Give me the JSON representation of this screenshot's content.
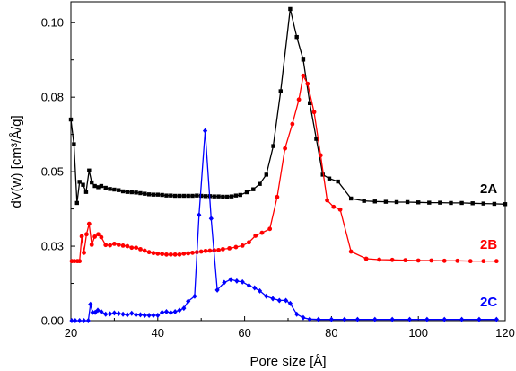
{
  "chart_data": {
    "type": "line",
    "xlabel": "Pore size [Å]",
    "ylabel": "dV(w) [cm³/Å/g]",
    "xlim": [
      20,
      120
    ],
    "ylim": [
      0,
      0.107
    ],
    "x_ticks": [
      20,
      40,
      60,
      80,
      100,
      120
    ],
    "x_tick_labels": [
      "20",
      "40",
      "60",
      "80",
      "100",
      "120"
    ],
    "y_ticks": [
      0,
      0.025,
      0.05,
      0.075,
      0.1
    ],
    "y_tick_labels": [
      "0.00",
      "0.03",
      "0.05",
      "0.08",
      "0.10"
    ],
    "grid": false,
    "legend": "inline labels at right",
    "series": [
      {
        "name": "2A",
        "color": "#000000",
        "marker": "square",
        "points": [
          [
            20.0,
            0.0675
          ],
          [
            20.7,
            0.0592
          ],
          [
            21.4,
            0.0395
          ],
          [
            22.0,
            0.0466
          ],
          [
            22.8,
            0.0456
          ],
          [
            23.5,
            0.0432
          ],
          [
            24.2,
            0.0504
          ],
          [
            24.8,
            0.0464
          ],
          [
            25.5,
            0.0452
          ],
          [
            26.3,
            0.0448
          ],
          [
            27.0,
            0.0452
          ],
          [
            28.0,
            0.0446
          ],
          [
            29.0,
            0.0442
          ],
          [
            30.0,
            0.044
          ],
          [
            31.0,
            0.0438
          ],
          [
            32.0,
            0.0434
          ],
          [
            33.0,
            0.0432
          ],
          [
            34.0,
            0.0431
          ],
          [
            35.0,
            0.043
          ],
          [
            36.0,
            0.0428
          ],
          [
            37.0,
            0.0426
          ],
          [
            38.0,
            0.0424
          ],
          [
            39.0,
            0.0423
          ],
          [
            40.0,
            0.0423
          ],
          [
            41.0,
            0.0422
          ],
          [
            42.0,
            0.042
          ],
          [
            43.0,
            0.042
          ],
          [
            44.0,
            0.0419
          ],
          [
            45.0,
            0.0419
          ],
          [
            46.0,
            0.0419
          ],
          [
            47.0,
            0.0419
          ],
          [
            48.0,
            0.0419
          ],
          [
            49.0,
            0.042
          ],
          [
            50.0,
            0.0419
          ],
          [
            51.0,
            0.0418
          ],
          [
            52.0,
            0.0418
          ],
          [
            53.0,
            0.0417
          ],
          [
            54.0,
            0.0417
          ],
          [
            55.0,
            0.0416
          ],
          [
            56.0,
            0.0416
          ],
          [
            57.0,
            0.0417
          ],
          [
            58.0,
            0.042
          ],
          [
            59.0,
            0.0422
          ],
          [
            60.5,
            0.0431
          ],
          [
            62.0,
            0.0441
          ],
          [
            63.5,
            0.0459
          ],
          [
            65.0,
            0.049
          ],
          [
            66.6,
            0.0586
          ],
          [
            68.3,
            0.077
          ],
          [
            70.5,
            0.1046
          ],
          [
            72.0,
            0.0952
          ],
          [
            73.5,
            0.0876
          ],
          [
            75.0,
            0.073
          ],
          [
            76.5,
            0.061
          ],
          [
            78.0,
            0.049
          ],
          [
            79.5,
            0.0477
          ],
          [
            81.5,
            0.0467
          ],
          [
            84.5,
            0.041
          ],
          [
            87.5,
            0.0402
          ],
          [
            90.0,
            0.04
          ],
          [
            92.5,
            0.0399
          ],
          [
            95.0,
            0.0398
          ],
          [
            97.5,
            0.0398
          ],
          [
            100.0,
            0.0397
          ],
          [
            102.5,
            0.0396
          ],
          [
            105.0,
            0.0396
          ],
          [
            107.5,
            0.0395
          ],
          [
            110.0,
            0.0395
          ],
          [
            112.5,
            0.0394
          ],
          [
            115.0,
            0.0393
          ],
          [
            117.5,
            0.0392
          ],
          [
            120.0,
            0.0391
          ]
        ]
      },
      {
        "name": "2B",
        "color": "#ff0000",
        "marker": "circle",
        "points": [
          [
            20.2,
            0.02
          ],
          [
            20.8,
            0.02
          ],
          [
            21.5,
            0.02
          ],
          [
            22.0,
            0.02
          ],
          [
            22.5,
            0.0283
          ],
          [
            23.0,
            0.0228
          ],
          [
            23.6,
            0.029
          ],
          [
            24.2,
            0.0325
          ],
          [
            24.8,
            0.0255
          ],
          [
            25.5,
            0.0282
          ],
          [
            26.3,
            0.029
          ],
          [
            27.0,
            0.028
          ],
          [
            28.0,
            0.0254
          ],
          [
            29.0,
            0.0253
          ],
          [
            30.0,
            0.0258
          ],
          [
            31.0,
            0.0255
          ],
          [
            32.0,
            0.0252
          ],
          [
            33.0,
            0.025
          ],
          [
            34.0,
            0.0245
          ],
          [
            35.0,
            0.0245
          ],
          [
            36.0,
            0.024
          ],
          [
            37.0,
            0.0235
          ],
          [
            38.0,
            0.023
          ],
          [
            39.0,
            0.0227
          ],
          [
            40.0,
            0.0225
          ],
          [
            41.0,
            0.0224
          ],
          [
            42.0,
            0.0222
          ],
          [
            43.0,
            0.0222
          ],
          [
            44.0,
            0.0222
          ],
          [
            45.0,
            0.0222
          ],
          [
            46.0,
            0.0225
          ],
          [
            47.0,
            0.0226
          ],
          [
            48.0,
            0.0228
          ],
          [
            49.0,
            0.023
          ],
          [
            50.0,
            0.0232
          ],
          [
            51.0,
            0.0234
          ],
          [
            52.0,
            0.0235
          ],
          [
            53.0,
            0.0236
          ],
          [
            54.0,
            0.0237
          ],
          [
            55.0,
            0.024
          ],
          [
            56.5,
            0.0243
          ],
          [
            58.0,
            0.0247
          ],
          [
            59.5,
            0.0252
          ],
          [
            61.0,
            0.0263
          ],
          [
            62.5,
            0.0285
          ],
          [
            64.0,
            0.0295
          ],
          [
            65.8,
            0.0308
          ],
          [
            67.5,
            0.0415
          ],
          [
            69.3,
            0.0578
          ],
          [
            71.0,
            0.066
          ],
          [
            72.5,
            0.0742
          ],
          [
            73.5,
            0.0822
          ],
          [
            74.5,
            0.0795
          ],
          [
            76.0,
            0.07
          ],
          [
            77.5,
            0.0555
          ],
          [
            79.0,
            0.0404
          ],
          [
            80.5,
            0.0382
          ],
          [
            82.0,
            0.0373
          ],
          [
            84.5,
            0.0232
          ],
          [
            88.0,
            0.0208
          ],
          [
            91.0,
            0.0205
          ],
          [
            94.0,
            0.0204
          ],
          [
            97.0,
            0.0203
          ],
          [
            100.0,
            0.0202
          ],
          [
            103.0,
            0.0202
          ],
          [
            106.0,
            0.0201
          ],
          [
            109.0,
            0.0201
          ],
          [
            112.0,
            0.02
          ],
          [
            115.0,
            0.02
          ],
          [
            118.0,
            0.02
          ]
        ]
      },
      {
        "name": "2C",
        "color": "#0000ff",
        "marker": "diamond",
        "points": [
          [
            20.2,
            0.0
          ],
          [
            21.0,
            0.0
          ],
          [
            22.0,
            0.0
          ],
          [
            23.0,
            0.0
          ],
          [
            24.0,
            0.0
          ],
          [
            24.5,
            0.0055
          ],
          [
            25.0,
            0.0028
          ],
          [
            25.6,
            0.0028
          ],
          [
            26.2,
            0.0035
          ],
          [
            27.0,
            0.003
          ],
          [
            28.0,
            0.0022
          ],
          [
            29.0,
            0.0023
          ],
          [
            30.0,
            0.0026
          ],
          [
            31.0,
            0.0024
          ],
          [
            32.0,
            0.0022
          ],
          [
            33.0,
            0.002
          ],
          [
            34.0,
            0.0025
          ],
          [
            35.0,
            0.002
          ],
          [
            36.0,
            0.002
          ],
          [
            37.0,
            0.0018
          ],
          [
            38.0,
            0.0018
          ],
          [
            39.0,
            0.0018
          ],
          [
            40.0,
            0.0018
          ],
          [
            41.0,
            0.0028
          ],
          [
            42.0,
            0.003
          ],
          [
            43.0,
            0.0027
          ],
          [
            44.0,
            0.003
          ],
          [
            45.0,
            0.0035
          ],
          [
            46.0,
            0.0042
          ],
          [
            47.0,
            0.0065
          ],
          [
            48.5,
            0.0082
          ],
          [
            49.5,
            0.0355
          ],
          [
            50.9,
            0.0637
          ],
          [
            52.3,
            0.0343
          ],
          [
            53.7,
            0.0103
          ],
          [
            55.3,
            0.0128
          ],
          [
            56.8,
            0.0138
          ],
          [
            58.2,
            0.0133
          ],
          [
            59.5,
            0.013
          ],
          [
            61.0,
            0.0118
          ],
          [
            62.3,
            0.011
          ],
          [
            63.5,
            0.01
          ],
          [
            65.0,
            0.0082
          ],
          [
            66.5,
            0.0074
          ],
          [
            68.0,
            0.0068
          ],
          [
            69.5,
            0.0068
          ],
          [
            70.5,
            0.0058
          ],
          [
            72.0,
            0.0022
          ],
          [
            73.5,
            0.001
          ],
          [
            75.0,
            0.0005
          ],
          [
            77.0,
            0.0004
          ],
          [
            80.0,
            0.0004
          ],
          [
            83.0,
            0.0004
          ],
          [
            86.0,
            0.0004
          ],
          [
            90.0,
            0.0004
          ],
          [
            94.0,
            0.0004
          ],
          [
            98.0,
            0.0004
          ],
          [
            102.0,
            0.0004
          ],
          [
            106.0,
            0.0004
          ],
          [
            110.0,
            0.0004
          ],
          [
            114.0,
            0.0004
          ],
          [
            118.0,
            0.0004
          ]
        ]
      }
    ],
    "series_labels": [
      {
        "text": "2A",
        "color": "#000000"
      },
      {
        "text": "2B",
        "color": "#ff0000"
      },
      {
        "text": "2C",
        "color": "#0000ff"
      }
    ]
  }
}
